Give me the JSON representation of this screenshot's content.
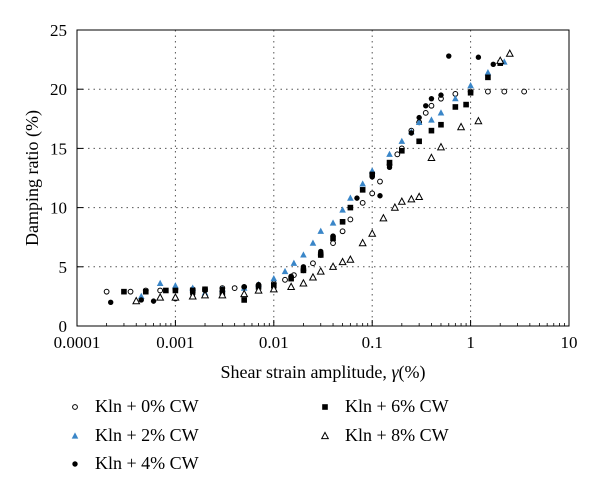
{
  "chart_data": {
    "type": "scatter",
    "xlabel_main": "Shear strain amplitude, ",
    "xlabel_symbol": "γ",
    "xlabel_unit": "(%)",
    "ylabel": "Damping ratio (%)",
    "x_scale": "log",
    "xlim": [
      0.0001,
      10
    ],
    "ylim": [
      0,
      25
    ],
    "x_ticks": [
      0.0001,
      0.001,
      0.01,
      0.1,
      1,
      10
    ],
    "x_tick_labels": [
      "0.0001",
      "0.001",
      "0.01",
      "0.1",
      "1",
      "10"
    ],
    "y_ticks": [
      0,
      5,
      10,
      15,
      20,
      25
    ],
    "y_tick_labels": [
      "0",
      "5",
      "10",
      "15",
      "20",
      "25"
    ],
    "grid": "dotted",
    "legend_position": "bottom",
    "series": [
      {
        "name": "Kln + 0% CW",
        "marker": "open-circle",
        "color": "#000000",
        "points": [
          [
            0.0002,
            2.9
          ],
          [
            0.00035,
            2.9
          ],
          [
            0.0005,
            3.0
          ],
          [
            0.0007,
            3.0
          ],
          [
            0.001,
            3.1
          ],
          [
            0.0015,
            3.1
          ],
          [
            0.002,
            3.1
          ],
          [
            0.003,
            3.2
          ],
          [
            0.004,
            3.2
          ],
          [
            0.005,
            3.3
          ],
          [
            0.007,
            3.4
          ],
          [
            0.01,
            3.6
          ],
          [
            0.013,
            3.9
          ],
          [
            0.016,
            4.3
          ],
          [
            0.02,
            4.7
          ],
          [
            0.025,
            5.3
          ],
          [
            0.03,
            6.0
          ],
          [
            0.04,
            7.0
          ],
          [
            0.05,
            8.0
          ],
          [
            0.06,
            9.0
          ],
          [
            0.08,
            10.4
          ],
          [
            0.1,
            11.2
          ],
          [
            0.12,
            12.2
          ],
          [
            0.15,
            13.6
          ],
          [
            0.18,
            14.5
          ],
          [
            0.2,
            15.0
          ],
          [
            0.25,
            16.5
          ],
          [
            0.3,
            17.2
          ],
          [
            0.35,
            18.0
          ],
          [
            0.4,
            18.6
          ],
          [
            0.5,
            19.2
          ],
          [
            0.7,
            19.6
          ],
          [
            1.0,
            19.8
          ],
          [
            1.5,
            19.8
          ],
          [
            2.2,
            19.8
          ],
          [
            3.5,
            19.8
          ]
        ]
      },
      {
        "name": "Kln + 2% CW",
        "marker": "filled-triangle",
        "color": "#3a86c8",
        "points": [
          [
            0.00045,
            2.5
          ],
          [
            0.0007,
            3.6
          ],
          [
            0.001,
            3.4
          ],
          [
            0.0015,
            3.2
          ],
          [
            0.002,
            2.8
          ],
          [
            0.003,
            3.1
          ],
          [
            0.005,
            3.2
          ],
          [
            0.007,
            3.5
          ],
          [
            0.01,
            4.0
          ],
          [
            0.013,
            4.6
          ],
          [
            0.016,
            5.3
          ],
          [
            0.02,
            6.0
          ],
          [
            0.025,
            7.0
          ],
          [
            0.03,
            8.0
          ],
          [
            0.04,
            8.7
          ],
          [
            0.05,
            9.8
          ],
          [
            0.06,
            10.8
          ],
          [
            0.08,
            12.0
          ],
          [
            0.1,
            13.1
          ],
          [
            0.15,
            14.5
          ],
          [
            0.2,
            15.6
          ],
          [
            0.25,
            16.4
          ],
          [
            0.3,
            17.2
          ],
          [
            0.4,
            17.4
          ],
          [
            0.5,
            18.0
          ],
          [
            0.7,
            19.2
          ],
          [
            1.0,
            20.3
          ],
          [
            1.5,
            21.4
          ],
          [
            2.2,
            22.3
          ]
        ]
      },
      {
        "name": "Kln + 4% CW",
        "marker": "filled-circle",
        "color": "#000000",
        "points": [
          [
            0.00022,
            2.0
          ],
          [
            0.00045,
            2.2
          ],
          [
            0.0006,
            2.1
          ],
          [
            0.001,
            2.3
          ],
          [
            0.0015,
            2.7
          ],
          [
            0.002,
            3.0
          ],
          [
            0.003,
            3.1
          ],
          [
            0.005,
            3.3
          ],
          [
            0.007,
            3.5
          ],
          [
            0.01,
            3.5
          ],
          [
            0.015,
            4.2
          ],
          [
            0.02,
            5.0
          ],
          [
            0.03,
            6.3
          ],
          [
            0.04,
            7.6
          ],
          [
            0.05,
            8.8
          ],
          [
            0.07,
            10.8
          ],
          [
            0.1,
            12.6
          ],
          [
            0.12,
            11.0
          ],
          [
            0.15,
            13.4
          ],
          [
            0.2,
            14.8
          ],
          [
            0.25,
            16.3
          ],
          [
            0.3,
            17.6
          ],
          [
            0.35,
            18.6
          ],
          [
            0.4,
            19.2
          ],
          [
            0.5,
            19.5
          ],
          [
            0.6,
            22.8
          ],
          [
            1.2,
            22.7
          ],
          [
            1.7,
            22.1
          ]
        ]
      },
      {
        "name": "Kln + 6% CW",
        "marker": "filled-square",
        "color": "#000000",
        "points": [
          [
            0.0003,
            2.9
          ],
          [
            0.0005,
            2.9
          ],
          [
            0.0008,
            3.0
          ],
          [
            0.001,
            3.0
          ],
          [
            0.0015,
            3.0
          ],
          [
            0.002,
            3.1
          ],
          [
            0.003,
            2.8
          ],
          [
            0.005,
            2.2
          ],
          [
            0.007,
            3.3
          ],
          [
            0.01,
            3.4
          ],
          [
            0.015,
            4.0
          ],
          [
            0.02,
            4.7
          ],
          [
            0.03,
            6.0
          ],
          [
            0.04,
            7.4
          ],
          [
            0.05,
            8.8
          ],
          [
            0.06,
            10.0
          ],
          [
            0.08,
            11.5
          ],
          [
            0.1,
            12.8
          ],
          [
            0.15,
            13.8
          ],
          [
            0.2,
            14.8
          ],
          [
            0.3,
            15.6
          ],
          [
            0.4,
            16.5
          ],
          [
            0.5,
            17.0
          ],
          [
            0.7,
            18.5
          ],
          [
            0.9,
            18.7
          ],
          [
            1.0,
            19.7
          ],
          [
            1.5,
            21.0
          ],
          [
            2.0,
            22.2
          ]
        ]
      },
      {
        "name": "Kln + 8% CW",
        "marker": "open-triangle",
        "color": "#000000",
        "points": [
          [
            0.0004,
            2.1
          ],
          [
            0.0007,
            2.4
          ],
          [
            0.001,
            2.4
          ],
          [
            0.0015,
            2.5
          ],
          [
            0.002,
            2.6
          ],
          [
            0.003,
            2.6
          ],
          [
            0.005,
            2.7
          ],
          [
            0.007,
            3.0
          ],
          [
            0.01,
            3.1
          ],
          [
            0.015,
            3.3
          ],
          [
            0.02,
            3.6
          ],
          [
            0.025,
            4.1
          ],
          [
            0.03,
            4.6
          ],
          [
            0.04,
            5.0
          ],
          [
            0.05,
            5.4
          ],
          [
            0.06,
            5.6
          ],
          [
            0.08,
            7.0
          ],
          [
            0.1,
            7.8
          ],
          [
            0.13,
            9.1
          ],
          [
            0.17,
            10.0
          ],
          [
            0.2,
            10.5
          ],
          [
            0.25,
            10.7
          ],
          [
            0.3,
            10.9
          ],
          [
            0.4,
            14.2
          ],
          [
            0.5,
            15.1
          ],
          [
            0.8,
            16.8
          ],
          [
            1.2,
            17.3
          ],
          [
            2.0,
            22.4
          ],
          [
            2.5,
            23.0
          ]
        ]
      }
    ]
  }
}
